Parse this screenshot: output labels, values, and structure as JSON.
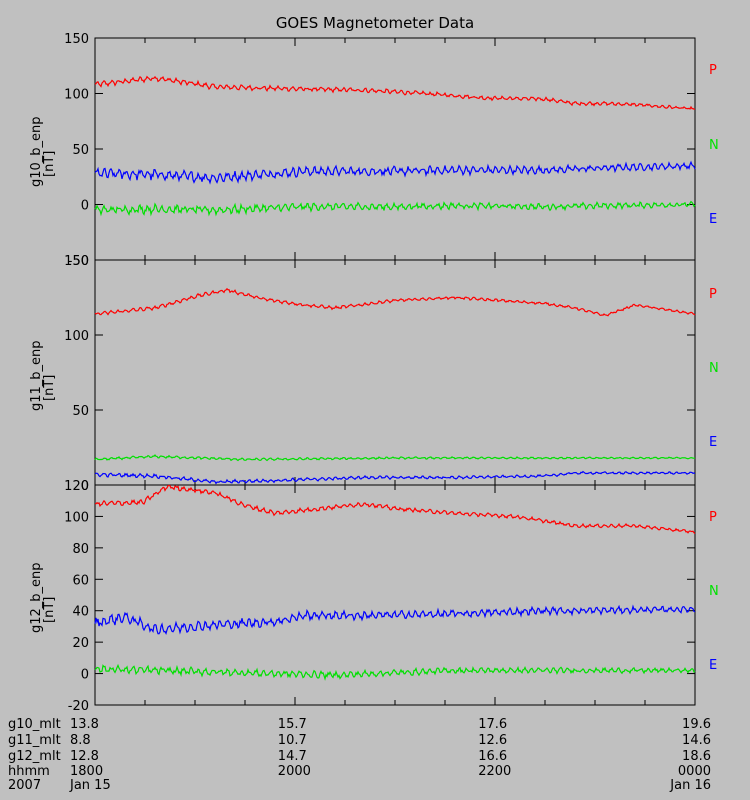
{
  "title": "GOES Magnetometer Data",
  "colors": {
    "P": "#ff0000",
    "N": "#00e000",
    "E": "#0000ff",
    "background": "#c0c0c0"
  },
  "chart_data": [
    {
      "type": "line",
      "ylabel": "g10_b_enp",
      "yunit": "[nT]",
      "ylim": [
        -50,
        150
      ],
      "yticks": [
        -50,
        0,
        50,
        100,
        150
      ],
      "legend": [
        "P",
        "N",
        "E"
      ],
      "series": [
        {
          "name": "P",
          "color": "#ff0000",
          "x": [
            0,
            0.1,
            0.2,
            0.35,
            0.45,
            0.55,
            0.65,
            0.75,
            0.8,
            0.85,
            0.9,
            1.0
          ],
          "values": [
            108,
            114,
            106,
            104,
            103,
            100,
            96,
            95,
            91,
            91,
            90,
            86
          ],
          "noise": 3
        },
        {
          "name": "E",
          "color": "#0000ff",
          "x": [
            0,
            0.1,
            0.2,
            0.35,
            0.5,
            0.6,
            0.75,
            0.85,
            1.0
          ],
          "values": [
            28,
            27,
            24,
            30,
            30,
            31,
            31,
            33,
            35
          ],
          "noise": 6
        },
        {
          "name": "N",
          "color": "#00e000",
          "x": [
            0,
            0.1,
            0.2,
            0.35,
            0.5,
            0.6,
            0.75,
            0.85,
            1.0
          ],
          "values": [
            -5,
            -4,
            -5,
            -2,
            -2,
            -1,
            -2,
            -1,
            0
          ],
          "noise": 5
        }
      ]
    },
    {
      "type": "line",
      "ylabel": "g11_b_enp",
      "yunit": "[nT]",
      "ylim": [
        0,
        150
      ],
      "yticks": [
        0,
        50,
        100,
        150
      ],
      "legend": [
        "P",
        "N",
        "E"
      ],
      "series": [
        {
          "name": "P",
          "color": "#ff0000",
          "x": [
            0,
            0.1,
            0.17,
            0.22,
            0.28,
            0.35,
            0.4,
            0.5,
            0.6,
            0.75,
            0.8,
            0.85,
            0.9,
            1.0
          ],
          "values": [
            114,
            118,
            126,
            130,
            124,
            120,
            118,
            123,
            125,
            121,
            118,
            113,
            120,
            114
          ],
          "noise": 1.5
        },
        {
          "name": "N",
          "color": "#00e000",
          "x": [
            0,
            0.1,
            0.25,
            0.5,
            0.75,
            1.0
          ],
          "values": [
            17,
            19,
            17,
            18,
            18,
            18
          ],
          "noise": 1
        },
        {
          "name": "E",
          "color": "#0000ff",
          "x": [
            0,
            0.1,
            0.2,
            0.3,
            0.45,
            0.6,
            0.75,
            0.8,
            1.0
          ],
          "values": [
            7,
            6,
            2,
            3,
            5,
            5,
            6,
            8,
            8
          ],
          "noise": 1.5
        }
      ]
    },
    {
      "type": "line",
      "ylabel": "g12_b_enp",
      "yunit": "[nT]",
      "ylim": [
        -20,
        120
      ],
      "yticks": [
        -20,
        0,
        20,
        40,
        60,
        80,
        100,
        120
      ],
      "legend": [
        "P",
        "N",
        "E"
      ],
      "series": [
        {
          "name": "P",
          "color": "#ff0000",
          "x": [
            0,
            0.08,
            0.12,
            0.2,
            0.25,
            0.3,
            0.4,
            0.45,
            0.5,
            0.6,
            0.7,
            0.75,
            0.8,
            0.9,
            1.0
          ],
          "values": [
            108,
            109,
            119,
            115,
            107,
            102,
            106,
            108,
            105,
            102,
            100,
            97,
            94,
            94,
            90
          ],
          "noise": 2
        },
        {
          "name": "E",
          "color": "#0000ff",
          "x": [
            0,
            0.05,
            0.1,
            0.2,
            0.3,
            0.35,
            0.45,
            0.6,
            0.75,
            0.8,
            1.0
          ],
          "values": [
            32,
            36,
            28,
            31,
            33,
            37,
            37,
            38,
            40,
            40,
            41
          ],
          "noise": 4
        },
        {
          "name": "N",
          "color": "#00e000",
          "x": [
            0,
            0.2,
            0.4,
            0.6,
            0.8,
            1.0
          ],
          "values": [
            3,
            1,
            -1,
            2,
            2,
            2
          ],
          "noise": 3
        }
      ]
    }
  ],
  "xaxis": {
    "row_labels": [
      "g10_mlt",
      "g11_mlt",
      "g12_mlt",
      "hhmm",
      "2007"
    ],
    "ticks": [
      {
        "pos": 0.0,
        "values": [
          "13.8",
          "8.8",
          "12.8",
          "1800",
          "Jan 15"
        ]
      },
      {
        "pos": 0.333,
        "values": [
          "15.7",
          "10.7",
          "14.7",
          "2000",
          ""
        ]
      },
      {
        "pos": 0.667,
        "values": [
          "17.6",
          "12.6",
          "16.6",
          "2200",
          ""
        ]
      },
      {
        "pos": 1.0,
        "values": [
          "19.6",
          "14.6",
          "18.6",
          "0000",
          "Jan 16"
        ]
      }
    ]
  }
}
